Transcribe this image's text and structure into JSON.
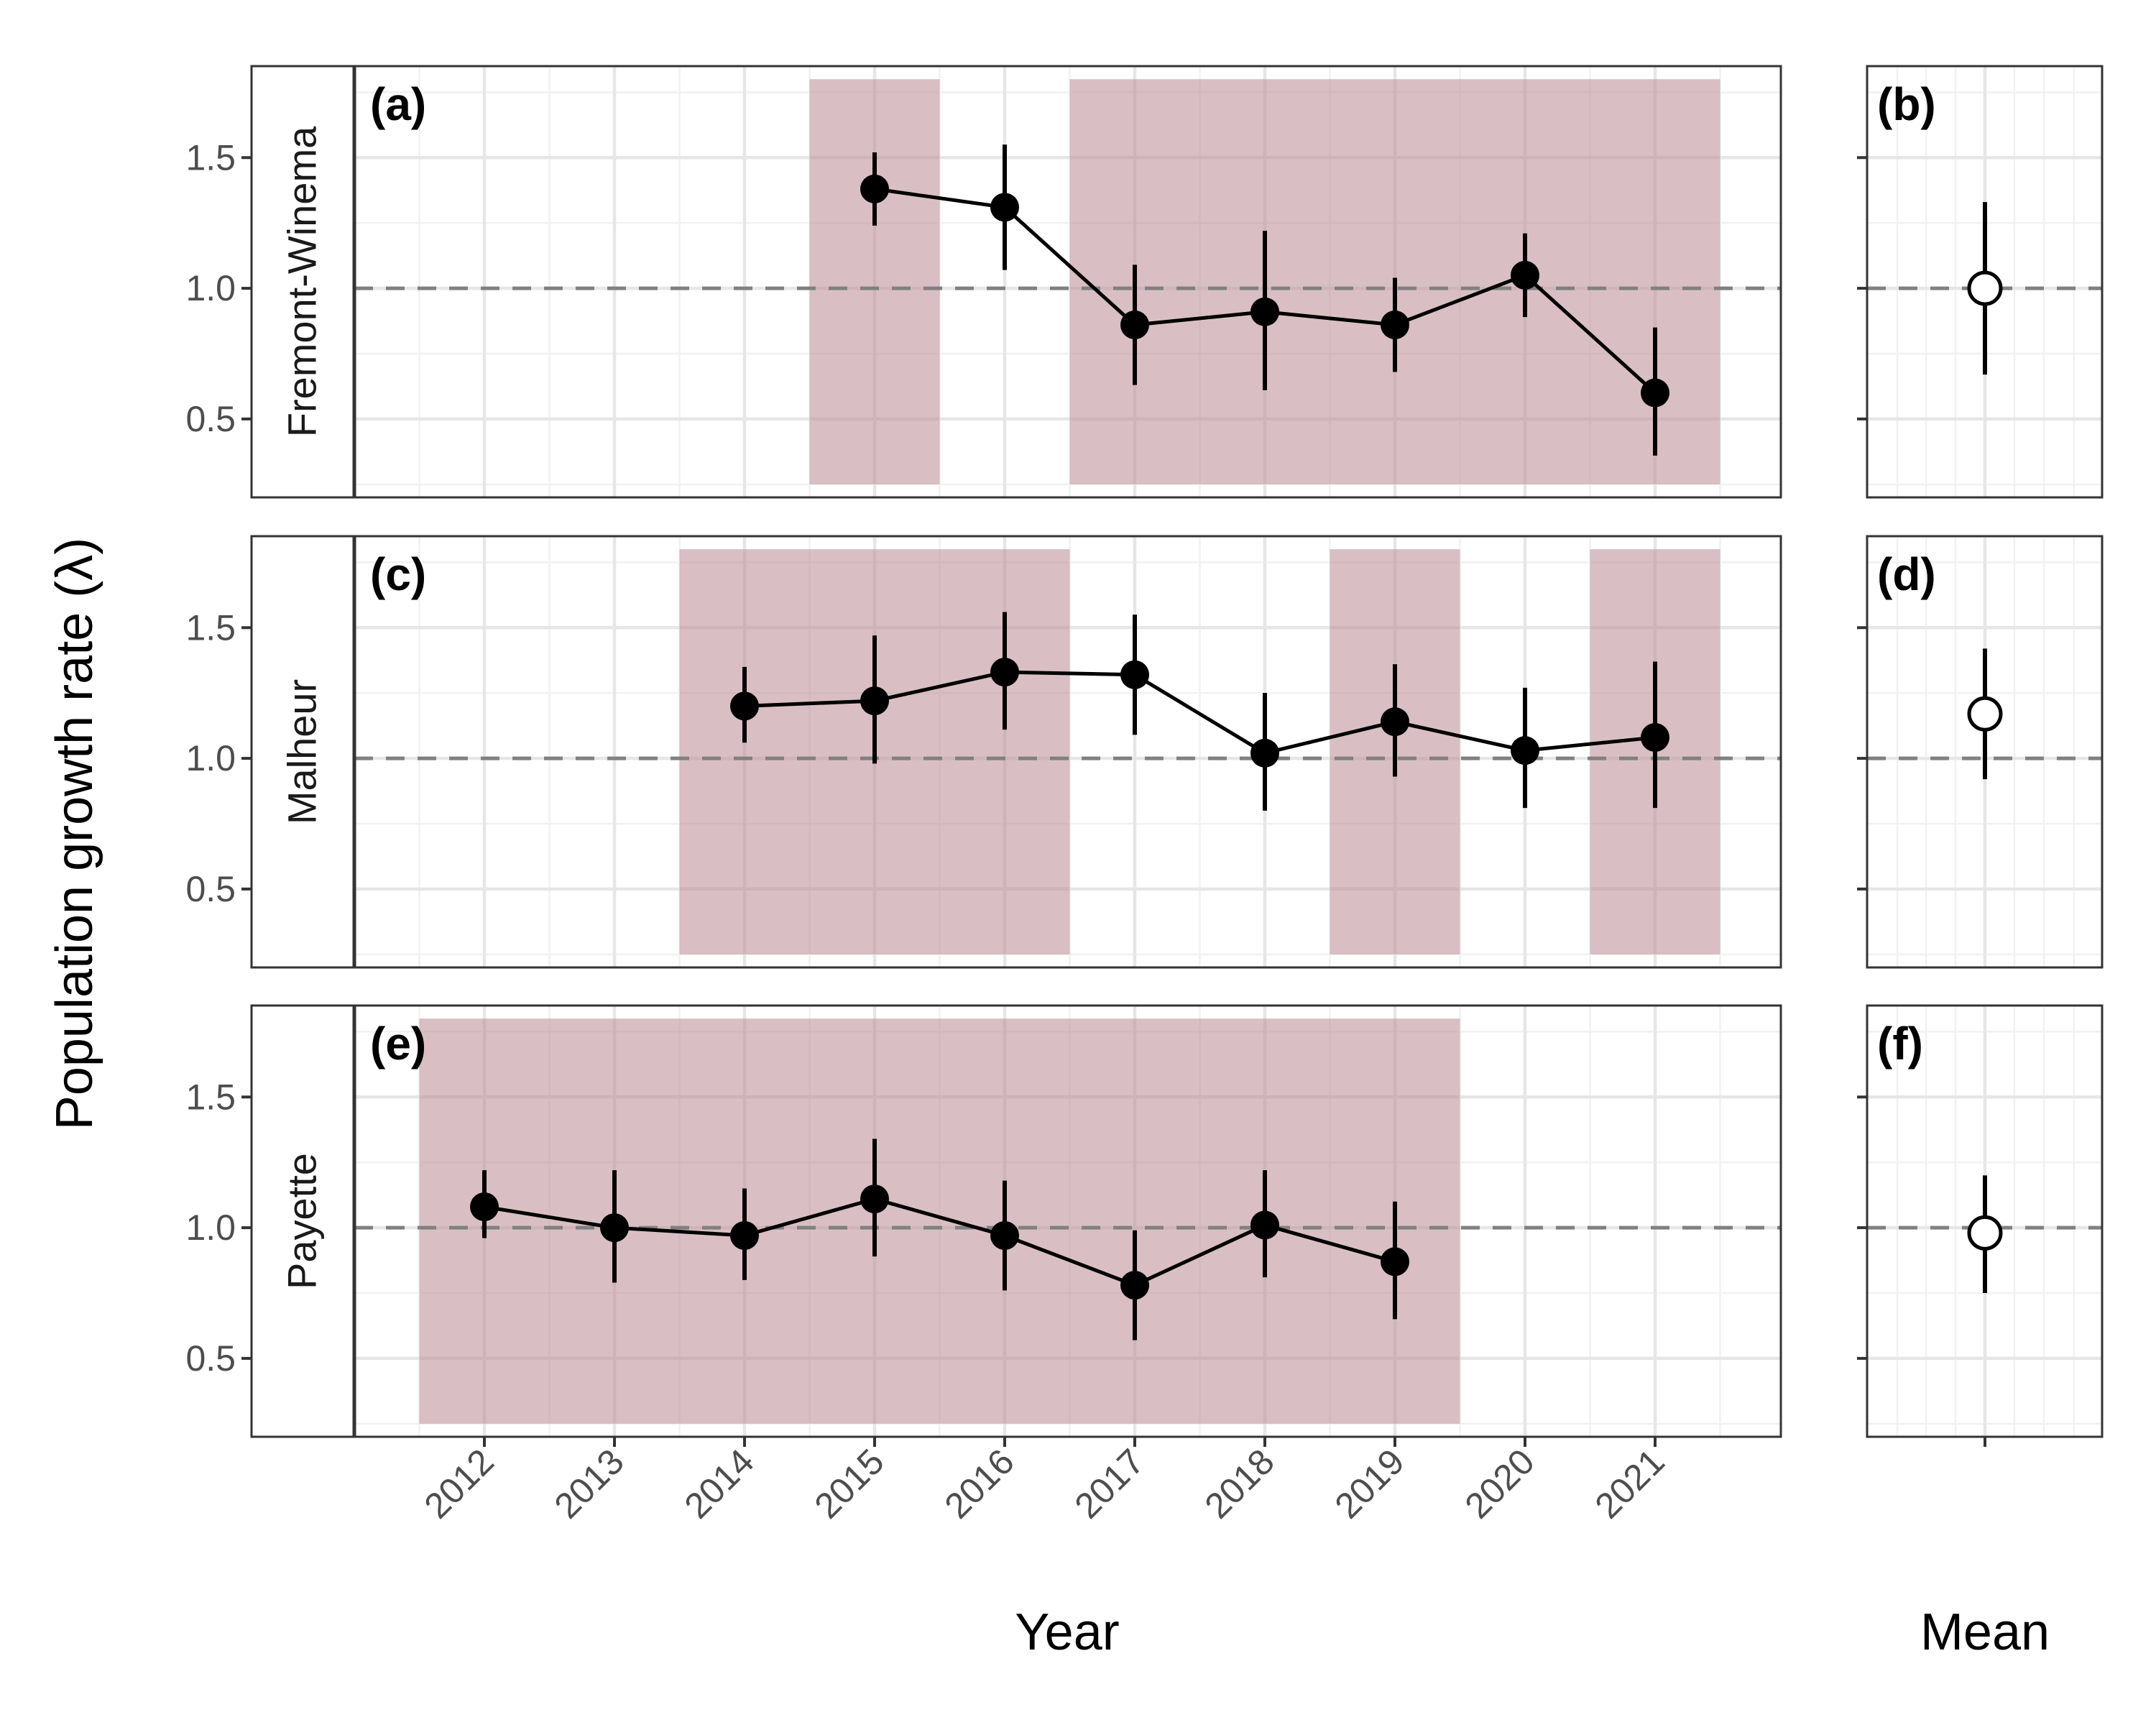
{
  "chart_data": {
    "type": "line",
    "ylabel": "Population growth rate (λ)",
    "xlabel_main": "Year",
    "xlabel_side": "Mean",
    "x_ticks": [
      "2012",
      "2013",
      "2014",
      "2015",
      "2016",
      "2017",
      "2018",
      "2019",
      "2020",
      "2021"
    ],
    "y_ticks": [
      "0.5",
      "1.0",
      "1.5"
    ],
    "ylim": [
      0.2,
      1.85
    ],
    "reference_line": 1.0,
    "shade_color": "#b98a91",
    "panels": [
      {
        "population": "Fremont-Winema",
        "tag_main": "(a)",
        "tag_mean": "(b)",
        "shaded_years": [
          [
            2015,
            2015
          ],
          [
            2017,
            2021
          ]
        ],
        "points": [
          {
            "year": 2015,
            "lambda": 1.38,
            "lower": 1.24,
            "upper": 1.52
          },
          {
            "year": 2016,
            "lambda": 1.31,
            "lower": 1.07,
            "upper": 1.55
          },
          {
            "year": 2017,
            "lambda": 0.86,
            "lower": 0.63,
            "upper": 1.09
          },
          {
            "year": 2018,
            "lambda": 0.91,
            "lower": 0.61,
            "upper": 1.22
          },
          {
            "year": 2019,
            "lambda": 0.86,
            "lower": 0.68,
            "upper": 1.04
          },
          {
            "year": 2020,
            "lambda": 1.05,
            "lower": 0.89,
            "upper": 1.21
          },
          {
            "year": 2021,
            "lambda": 0.6,
            "lower": 0.36,
            "upper": 0.85
          }
        ],
        "mean": {
          "lambda": 1.0,
          "lower": 0.67,
          "upper": 1.33
        }
      },
      {
        "population": "Malheur",
        "tag_main": "(c)",
        "tag_mean": "(d)",
        "shaded_years": [
          [
            2014,
            2016
          ],
          [
            2019,
            2019
          ],
          [
            2021,
            2021
          ]
        ],
        "points": [
          {
            "year": 2014,
            "lambda": 1.2,
            "lower": 1.06,
            "upper": 1.35
          },
          {
            "year": 2015,
            "lambda": 1.22,
            "lower": 0.98,
            "upper": 1.47
          },
          {
            "year": 2016,
            "lambda": 1.33,
            "lower": 1.11,
            "upper": 1.56
          },
          {
            "year": 2017,
            "lambda": 1.32,
            "lower": 1.09,
            "upper": 1.55
          },
          {
            "year": 2018,
            "lambda": 1.02,
            "lower": 0.8,
            "upper": 1.25
          },
          {
            "year": 2019,
            "lambda": 1.14,
            "lower": 0.93,
            "upper": 1.36
          },
          {
            "year": 2020,
            "lambda": 1.03,
            "lower": 0.81,
            "upper": 1.27
          },
          {
            "year": 2021,
            "lambda": 1.08,
            "lower": 0.81,
            "upper": 1.37
          }
        ],
        "mean": {
          "lambda": 1.17,
          "lower": 0.92,
          "upper": 1.42
        }
      },
      {
        "population": "Payette",
        "tag_main": "(e)",
        "tag_mean": "(f)",
        "shaded_years": [
          [
            2012,
            2019
          ]
        ],
        "points": [
          {
            "year": 2012,
            "lambda": 1.08,
            "lower": 0.96,
            "upper": 1.22
          },
          {
            "year": 2013,
            "lambda": 1.0,
            "lower": 0.79,
            "upper": 1.22
          },
          {
            "year": 2014,
            "lambda": 0.97,
            "lower": 0.8,
            "upper": 1.15
          },
          {
            "year": 2015,
            "lambda": 1.11,
            "lower": 0.89,
            "upper": 1.34
          },
          {
            "year": 2016,
            "lambda": 0.97,
            "lower": 0.76,
            "upper": 1.18
          },
          {
            "year": 2017,
            "lambda": 0.78,
            "lower": 0.57,
            "upper": 0.99
          },
          {
            "year": 2018,
            "lambda": 1.01,
            "lower": 0.81,
            "upper": 1.22
          },
          {
            "year": 2019,
            "lambda": 0.87,
            "lower": 0.65,
            "upper": 1.1
          }
        ],
        "mean": {
          "lambda": 0.98,
          "lower": 0.75,
          "upper": 1.2
        }
      }
    ]
  }
}
